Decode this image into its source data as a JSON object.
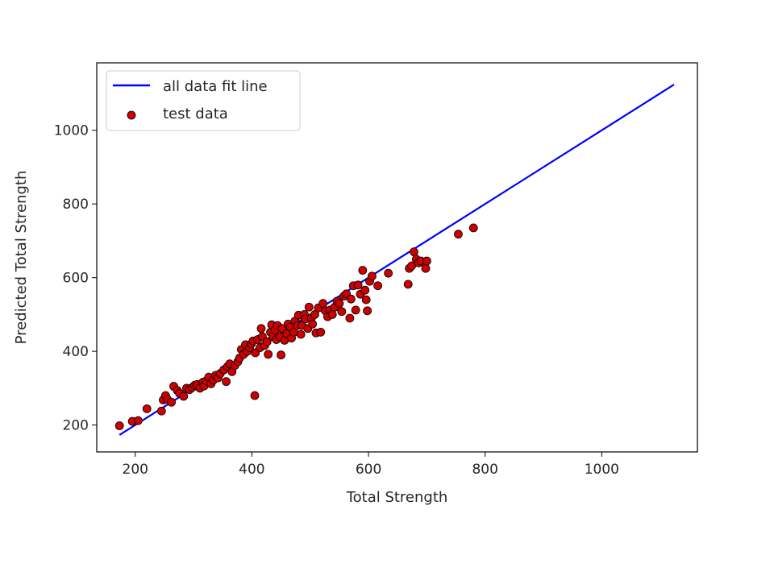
{
  "chart_data": {
    "type": "scatter",
    "xlabel": "Total Strength",
    "ylabel": "Predicted Total Strength",
    "xlim": [
      134,
      1164
    ],
    "ylim": [
      127,
      1183
    ],
    "xticks": [
      200,
      400,
      600,
      800,
      1000
    ],
    "yticks": [
      200,
      400,
      600,
      800,
      1000
    ],
    "grid": false,
    "legend_position": "upper left",
    "fit_line": {
      "name": "all data fit line",
      "color": "#0000ff",
      "x": [
        173,
        1124
      ],
      "y": [
        173,
        1124
      ]
    },
    "scatter": {
      "name": "test data",
      "color": "#cc0000",
      "edge_color": "#000000",
      "x": [
        173,
        195,
        205,
        220,
        245,
        248,
        252,
        255,
        262,
        266,
        272,
        276,
        283,
        288,
        293,
        298,
        302,
        306,
        311,
        316,
        318,
        322,
        326,
        330,
        334,
        338,
        342,
        346,
        352,
        356,
        358,
        362,
        366,
        371,
        376,
        379,
        382,
        386,
        389,
        392,
        396,
        399,
        402,
        405,
        406,
        410,
        414,
        416,
        418,
        422,
        426,
        428,
        432,
        434,
        436,
        440,
        442,
        444,
        448,
        450,
        452,
        456,
        460,
        462,
        466,
        468,
        472,
        474,
        478,
        480,
        484,
        486,
        490,
        492,
        496,
        498,
        502,
        504,
        508,
        510,
        514,
        518,
        522,
        526,
        530,
        534,
        538,
        542,
        546,
        550,
        554,
        558,
        562,
        568,
        570,
        574,
        578,
        582,
        586,
        590,
        594,
        596,
        598,
        602,
        606,
        616,
        634,
        668,
        670,
        674,
        678,
        682,
        686,
        690,
        698,
        700,
        754,
        780
      ],
      "y": [
        198,
        210,
        212,
        244,
        238,
        268,
        280,
        270,
        262,
        305,
        294,
        286,
        278,
        300,
        296,
        302,
        308,
        310,
        300,
        316,
        306,
        320,
        330,
        312,
        322,
        335,
        328,
        340,
        350,
        318,
        358,
        366,
        345,
        362,
        372,
        382,
        405,
        392,
        418,
        400,
        410,
        420,
        428,
        280,
        396,
        432,
        410,
        462,
        440,
        416,
        426,
        392,
        452,
        472,
        440,
        458,
        432,
        470,
        440,
        390,
        462,
        430,
        448,
        474,
        466,
        436,
        452,
        482,
        470,
        498,
        446,
        470,
        500,
        488,
        462,
        520,
        490,
        474,
        500,
        450,
        518,
        452,
        530,
        510,
        494,
        512,
        500,
        520,
        536,
        530,
        508,
        550,
        556,
        490,
        542,
        578,
        512,
        580,
        555,
        620,
        566,
        540,
        510,
        590,
        604,
        578,
        612,
        582,
        625,
        632,
        670,
        650,
        640,
        645,
        625,
        645,
        718,
        735
      ]
    }
  }
}
